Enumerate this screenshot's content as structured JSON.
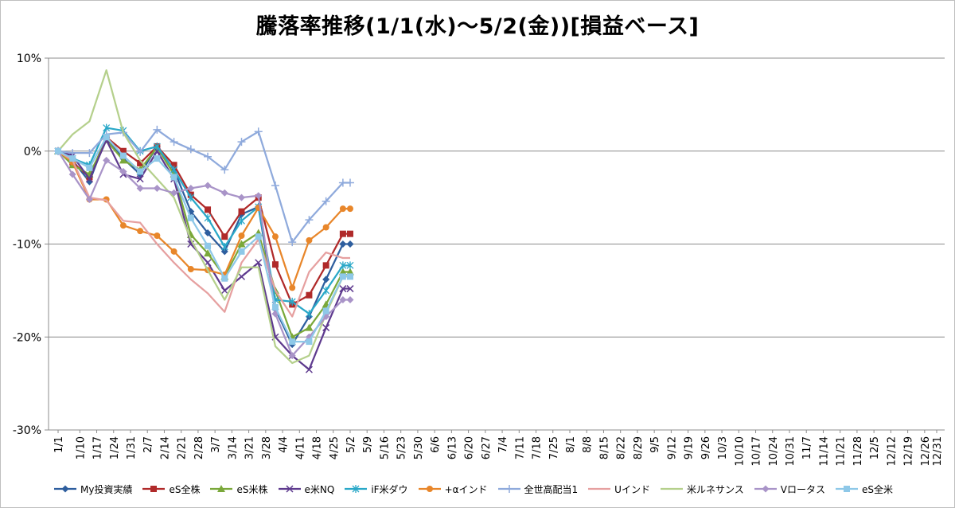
{
  "chart_data": {
    "type": "line",
    "title": "騰落率推移(1/1(水)～5/2(金))[損益ベース]",
    "xlabel": "",
    "ylabel": "",
    "ylim": [
      -0.3,
      0.1
    ],
    "yticks": [
      {
        "value": 0.1,
        "label": "10%"
      },
      {
        "value": 0.0,
        "label": "0%"
      },
      {
        "value": -0.1,
        "label": "-10%"
      },
      {
        "value": -0.2,
        "label": "-20%"
      },
      {
        "value": -0.3,
        "label": "-30%"
      }
    ],
    "categories": [
      "1/1",
      "1/10",
      "1/17",
      "1/24",
      "1/31",
      "2/7",
      "2/14",
      "2/21",
      "2/28",
      "3/7",
      "3/14",
      "3/21",
      "3/28",
      "4/4",
      "4/11",
      "4/18",
      "4/25",
      "5/2",
      "5/9",
      "5/16",
      "5/23",
      "5/30",
      "6/6",
      "6/13",
      "6/20",
      "6/27",
      "7/4",
      "7/11",
      "7/18",
      "7/25",
      "8/1",
      "8/8",
      "8/15",
      "8/22",
      "8/29",
      "9/5",
      "9/12",
      "9/19",
      "9/26",
      "10/3",
      "10/10",
      "10/17",
      "10/24",
      "10/31",
      "11/7",
      "11/14",
      "11/21",
      "11/28",
      "12/5",
      "12/12",
      "12/19",
      "12/26",
      "12/31"
    ],
    "x_days": [
      1,
      10,
      17,
      24,
      31,
      38,
      45,
      52,
      59,
      66,
      73,
      80,
      87,
      94,
      101,
      108,
      115,
      122,
      129,
      136,
      143,
      150,
      157,
      164,
      171,
      178,
      185,
      192,
      199,
      206,
      213,
      220,
      227,
      234,
      241,
      248,
      255,
      262,
      269,
      276,
      283,
      290,
      297,
      304,
      311,
      318,
      325,
      332,
      339,
      346,
      353,
      360,
      365
    ],
    "grid": {
      "horizontal": true,
      "vertical": false
    },
    "legend_position": "bottom",
    "series": [
      {
        "name": "My投資実績",
        "color": "#2E5E9E",
        "marker": "diamond",
        "x": [
          1,
          7,
          14,
          21,
          28,
          35,
          42,
          49,
          56,
          63,
          70,
          77,
          84,
          91,
          98,
          105,
          112,
          119,
          122
        ],
        "y": [
          0.0,
          -0.01,
          -0.033,
          0.015,
          -0.008,
          -0.025,
          0.005,
          -0.02,
          -0.065,
          -0.088,
          -0.108,
          -0.068,
          -0.06,
          -0.17,
          -0.208,
          -0.178,
          -0.138,
          -0.1,
          -0.1
        ]
      },
      {
        "name": "eS全株",
        "color": "#B02A2A",
        "marker": "square",
        "x": [
          1,
          7,
          14,
          21,
          28,
          35,
          42,
          49,
          56,
          63,
          70,
          77,
          84,
          91,
          98,
          105,
          112,
          119,
          122
        ],
        "y": [
          0.0,
          -0.012,
          -0.028,
          0.015,
          0.0,
          -0.013,
          0.005,
          -0.015,
          -0.047,
          -0.063,
          -0.092,
          -0.065,
          -0.05,
          -0.122,
          -0.165,
          -0.155,
          -0.123,
          -0.089,
          -0.089
        ]
      },
      {
        "name": "eS米株",
        "color": "#7AA83A",
        "marker": "triangle",
        "x": [
          1,
          7,
          14,
          21,
          28,
          35,
          42,
          49,
          56,
          63,
          70,
          77,
          84,
          91,
          98,
          105,
          112,
          119,
          122
        ],
        "y": [
          0.0,
          -0.015,
          -0.025,
          0.012,
          -0.01,
          -0.02,
          0.004,
          -0.025,
          -0.09,
          -0.11,
          -0.135,
          -0.1,
          -0.088,
          -0.15,
          -0.2,
          -0.19,
          -0.165,
          -0.13,
          -0.13
        ]
      },
      {
        "name": "e米NQ",
        "color": "#5E3A8E",
        "marker": "x",
        "x": [
          1,
          7,
          14,
          21,
          28,
          35,
          42,
          49,
          56,
          63,
          70,
          77,
          84,
          91,
          98,
          105,
          112,
          119,
          122
        ],
        "y": [
          0.0,
          -0.005,
          -0.03,
          0.012,
          -0.025,
          -0.03,
          0.0,
          -0.03,
          -0.1,
          -0.12,
          -0.15,
          -0.135,
          -0.12,
          -0.2,
          -0.22,
          -0.235,
          -0.19,
          -0.148,
          -0.148
        ]
      },
      {
        "name": "iF米ダウ",
        "color": "#2AA8C8",
        "marker": "asterisk",
        "x": [
          1,
          7,
          14,
          21,
          28,
          35,
          42,
          49,
          56,
          63,
          70,
          77,
          84,
          91,
          98,
          105,
          112,
          119,
          122
        ],
        "y": [
          0.0,
          -0.008,
          -0.015,
          0.025,
          0.022,
          0.0,
          0.005,
          -0.02,
          -0.05,
          -0.072,
          -0.103,
          -0.075,
          -0.06,
          -0.16,
          -0.162,
          -0.175,
          -0.15,
          -0.123,
          -0.123
        ]
      },
      {
        "name": "+αインド",
        "color": "#E8862A",
        "marker": "circle",
        "x": [
          1,
          7,
          14,
          21,
          28,
          35,
          42,
          49,
          56,
          63,
          70,
          77,
          84,
          91,
          98,
          105,
          112,
          119,
          122
        ],
        "y": [
          0.0,
          -0.012,
          -0.052,
          -0.052,
          -0.08,
          -0.086,
          -0.091,
          -0.108,
          -0.127,
          -0.128,
          -0.133,
          -0.091,
          -0.061,
          -0.092,
          -0.147,
          -0.096,
          -0.082,
          -0.062,
          -0.062
        ]
      },
      {
        "name": "全世高配当1",
        "color": "#8FAADC",
        "marker": "plus",
        "x": [
          1,
          7,
          14,
          21,
          28,
          35,
          42,
          49,
          56,
          63,
          70,
          77,
          84,
          91,
          98,
          105,
          112,
          119,
          122
        ],
        "y": [
          0.0,
          -0.002,
          -0.002,
          0.018,
          0.02,
          -0.001,
          0.023,
          0.01,
          0.002,
          -0.006,
          -0.02,
          0.01,
          0.021,
          -0.037,
          -0.098,
          -0.074,
          -0.054,
          -0.034,
          -0.034
        ]
      },
      {
        "name": "Uインド",
        "color": "#E6A0A0",
        "marker": "none",
        "x": [
          1,
          7,
          14,
          21,
          28,
          35,
          42,
          49,
          56,
          63,
          70,
          77,
          84,
          91,
          98,
          105,
          112,
          119,
          122
        ],
        "y": [
          0.0,
          -0.01,
          -0.05,
          -0.053,
          -0.075,
          -0.077,
          -0.1,
          -0.12,
          -0.138,
          -0.153,
          -0.173,
          -0.12,
          -0.095,
          -0.15,
          -0.178,
          -0.13,
          -0.109,
          -0.115,
          -0.115
        ]
      },
      {
        "name": "米ルネサンス",
        "color": "#B5D08C",
        "marker": "none",
        "x": [
          1,
          7,
          14,
          21,
          28,
          35,
          42,
          49,
          56,
          63,
          70,
          77,
          84,
          91,
          98,
          105,
          112,
          119,
          122
        ],
        "y": [
          0.0,
          0.018,
          0.032,
          0.087,
          0.02,
          -0.01,
          -0.03,
          -0.05,
          -0.095,
          -0.128,
          -0.16,
          -0.125,
          -0.125,
          -0.21,
          -0.228,
          -0.22,
          -0.175,
          -0.135,
          -0.135
        ]
      },
      {
        "name": "Vロータス",
        "color": "#A994C8",
        "marker": "diamond",
        "x": [
          1,
          7,
          14,
          21,
          28,
          35,
          42,
          49,
          56,
          63,
          70,
          77,
          84,
          91,
          98,
          105,
          112,
          119,
          122
        ],
        "y": [
          0.0,
          -0.025,
          -0.052,
          -0.01,
          -0.022,
          -0.04,
          -0.04,
          -0.045,
          -0.04,
          -0.037,
          -0.045,
          -0.05,
          -0.048,
          -0.175,
          -0.22,
          -0.2,
          -0.178,
          -0.16,
          -0.16
        ]
      },
      {
        "name": "eS全米",
        "color": "#8EC8E8",
        "marker": "square",
        "x": [
          1,
          7,
          14,
          21,
          28,
          35,
          42,
          49,
          56,
          63,
          70,
          77,
          84,
          91,
          98,
          105,
          112,
          119,
          122
        ],
        "y": [
          0.0,
          -0.008,
          -0.018,
          0.015,
          -0.005,
          -0.022,
          -0.008,
          -0.028,
          -0.072,
          -0.102,
          -0.137,
          -0.108,
          -0.092,
          -0.168,
          -0.205,
          -0.205,
          -0.172,
          -0.135,
          -0.135
        ]
      }
    ]
  }
}
